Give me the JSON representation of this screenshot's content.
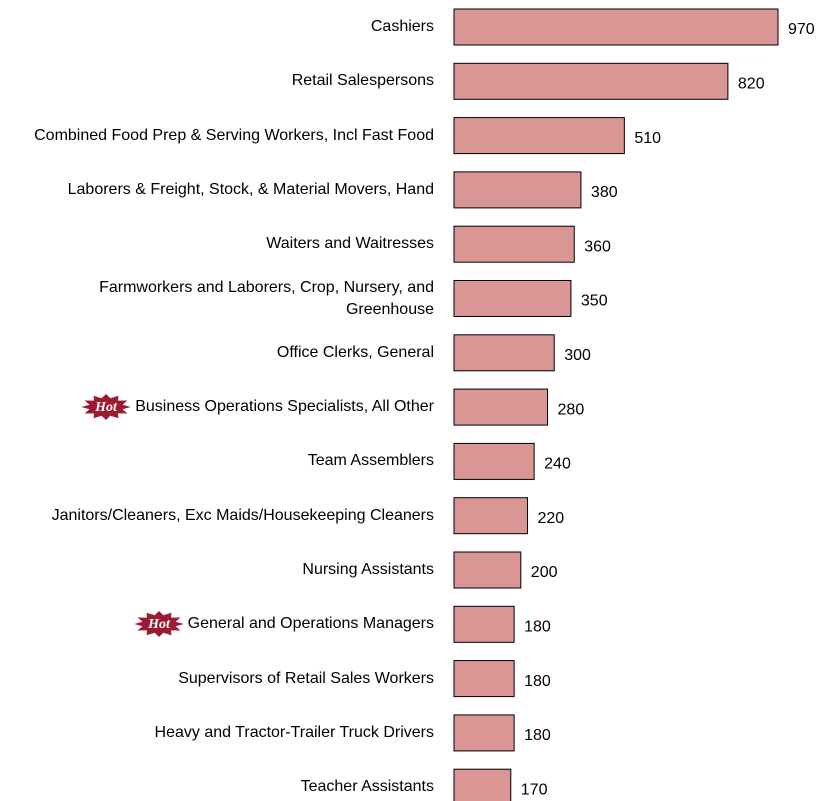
{
  "chart_data": {
    "type": "bar",
    "orientation": "horizontal",
    "categories": [
      "Cashiers",
      "Retail Salespersons",
      "Combined Food Prep & Serving Workers, Incl Fast Food",
      "Laborers & Freight, Stock, & Material Movers, Hand",
      "Waiters and Waitresses",
      "Farmworkers and Laborers, Crop, Nursery, and Greenhouse",
      "Office Clerks, General",
      "Business Operations Specialists, All Other",
      "Team Assemblers",
      "Janitors/Cleaners, Exc Maids/Housekeeping Cleaners",
      "Nursing Assistants",
      "General and Operations Managers",
      "Supervisors of Retail Sales Workers",
      "Heavy and Tractor-Trailer Truck Drivers",
      "Teacher Assistants"
    ],
    "values": [
      970,
      820,
      510,
      380,
      360,
      350,
      300,
      280,
      240,
      220,
      200,
      180,
      180,
      180,
      170
    ],
    "color": "#d99694",
    "badge_text": "Hot",
    "badge_color": "#9b1b30",
    "hot": [
      false,
      false,
      false,
      false,
      false,
      false,
      false,
      true,
      false,
      false,
      false,
      true,
      false,
      false,
      false
    ]
  }
}
